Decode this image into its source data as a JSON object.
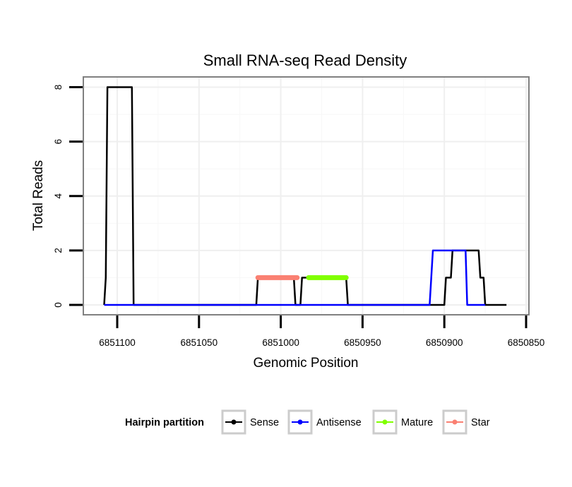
{
  "chart_data": {
    "type": "line",
    "title": "Small RNA-seq Read Density",
    "xlabel": "Genomic Position",
    "ylabel": "Total Reads",
    "x_reversed": true,
    "xlim": [
      6851120,
      6850845
    ],
    "ylim": [
      -0.3,
      8.4
    ],
    "x_ticks": [
      6851100,
      6851050,
      6851000,
      6850950,
      6850900,
      6850850
    ],
    "x_tick_labels": [
      "6851100",
      "6851050",
      "6851000",
      "6850950",
      "6850900",
      "6850850"
    ],
    "y_ticks": [
      0,
      2,
      4,
      6,
      8
    ],
    "y_tick_labels": [
      "0",
      "2",
      "4",
      "6",
      "8"
    ],
    "grid": true,
    "legend": {
      "title": "Hairpin partition",
      "position": "bottom",
      "entries": [
        "Sense",
        "Antisense",
        "Mature",
        "Star"
      ]
    },
    "series": [
      {
        "name": "Sense",
        "color": "#000000",
        "stroke_width": 2.5,
        "points": [
          [
            6851108,
            0
          ],
          [
            6851107,
            1
          ],
          [
            6851106,
            8
          ],
          [
            6851099,
            8
          ],
          [
            6851098,
            8
          ],
          [
            6851091,
            8
          ],
          [
            6851090,
            0
          ],
          [
            6851015,
            0
          ],
          [
            6851014,
            1
          ],
          [
            6851013,
            1
          ],
          [
            6850992,
            1
          ],
          [
            6850991,
            0
          ],
          [
            6850988,
            0
          ],
          [
            6850987,
            1
          ],
          [
            6850960,
            1
          ],
          [
            6850959,
            0
          ],
          [
            6850900,
            0
          ],
          [
            6850899,
            1
          ],
          [
            6850896,
            1
          ],
          [
            6850895,
            2
          ],
          [
            6850879,
            2
          ],
          [
            6850878,
            1
          ],
          [
            6850876,
            1
          ],
          [
            6850875,
            0
          ],
          [
            6850862,
            0
          ]
        ]
      },
      {
        "name": "Antisense",
        "color": "#0000ff",
        "stroke_width": 2.5,
        "points": [
          [
            6851108,
            0
          ],
          [
            6850909,
            0
          ],
          [
            6850908,
            1
          ],
          [
            6850907,
            2
          ],
          [
            6850895,
            2
          ],
          [
            6850894,
            2
          ],
          [
            6850887,
            2
          ],
          [
            6850886,
            0
          ],
          [
            6850875,
            0
          ]
        ]
      },
      {
        "name": "Mature",
        "color": "#80ff00",
        "stroke_width": 7,
        "points": [
          [
            6850983,
            1
          ],
          [
            6850960,
            1
          ]
        ]
      },
      {
        "name": "Star",
        "color": "#fa8072",
        "stroke_width": 7,
        "points": [
          [
            6851014,
            1
          ],
          [
            6850990,
            1
          ]
        ]
      }
    ]
  }
}
